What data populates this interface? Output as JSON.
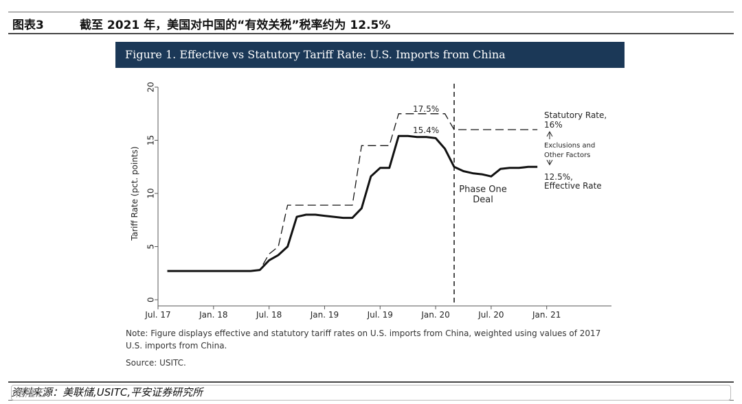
{
  "header": {
    "figure_num": "图表3",
    "title": "截至 2021 年，美国对中国的“有效关税”税率约为 12.5%"
  },
  "chart_data": {
    "type": "line",
    "title": "Figure 1. Effective vs Statutory Tariff Rate: U.S. Imports from China",
    "ylabel": "Tariff Rate (pct. points)",
    "xlabel": "",
    "ylim": [
      0,
      20
    ],
    "xlim": [
      0,
      49
    ],
    "yticks": [
      0,
      5,
      10,
      15,
      20
    ],
    "xticks": [
      {
        "pos": 0,
        "label": "Jul. 17"
      },
      {
        "pos": 6,
        "label": "Jan. 18"
      },
      {
        "pos": 12,
        "label": "Jul. 18"
      },
      {
        "pos": 18,
        "label": "Jan. 19"
      },
      {
        "pos": 24,
        "label": "Jul. 19"
      },
      {
        "pos": 30,
        "label": "Jan. 20"
      },
      {
        "pos": 36,
        "label": "Jul. 20"
      },
      {
        "pos": 42,
        "label": "Jan. 21"
      }
    ],
    "series": [
      {
        "style": "dashed",
        "x": [
          1,
          5,
          9,
          10,
          11,
          12,
          13,
          14,
          15,
          18,
          21,
          22,
          23,
          24,
          25,
          26,
          27,
          28,
          29,
          30,
          31,
          32,
          33,
          34,
          35,
          36,
          37,
          38,
          39,
          40,
          41
        ],
        "values": [
          2.7,
          2.7,
          2.7,
          2.7,
          2.8,
          4.3,
          5.0,
          8.9,
          8.9,
          8.9,
          8.9,
          14.5,
          14.5,
          14.5,
          14.5,
          17.5,
          17.5,
          17.5,
          17.5,
          17.5,
          17.5,
          16.0,
          16.0,
          16.0,
          16.0,
          16.0,
          16.0,
          16.0,
          16.0,
          16.0,
          16.0
        ]
      },
      {
        "style": "solid",
        "x": [
          1,
          5,
          9,
          10,
          11,
          12,
          13,
          14,
          15,
          16,
          17,
          18,
          19,
          20,
          21,
          22,
          23,
          24,
          25,
          26,
          27,
          28,
          29,
          30,
          31,
          32,
          33,
          34,
          35,
          36,
          37,
          38,
          39,
          40,
          41
        ],
        "values": [
          2.7,
          2.7,
          2.7,
          2.7,
          2.8,
          3.7,
          4.2,
          5.0,
          7.8,
          8.0,
          8.0,
          7.9,
          7.8,
          7.7,
          7.7,
          8.6,
          11.6,
          12.4,
          12.4,
          15.4,
          15.4,
          15.3,
          15.3,
          15.2,
          14.2,
          12.5,
          12.1,
          11.9,
          11.8,
          11.6,
          12.3,
          12.4,
          12.4,
          12.5,
          12.5
        ]
      }
    ],
    "event_line": {
      "x": 32,
      "label_line1": "Phase One",
      "label_line2": "Deal"
    },
    "annotations": {
      "peak_statutory": "17.5%",
      "peak_effective": "15.4%",
      "statutory_line1": "Statutory Rate,",
      "statutory_line2": "16%",
      "gap_line1": "Exclusions and",
      "gap_line2": "Other Factors",
      "effective_line1": "12.5%,",
      "effective_line2": "Effective Rate"
    }
  },
  "note": "Note: Figure displays effective and statutory tariff rates on U.S. imports from China, weighted using values of 2017 U.S. imports from China.",
  "source": "Source: USITC.",
  "footer": {
    "source": "资料来源：美联储,USITC,平安证券研究所",
    "watermark": "格隆汇"
  }
}
